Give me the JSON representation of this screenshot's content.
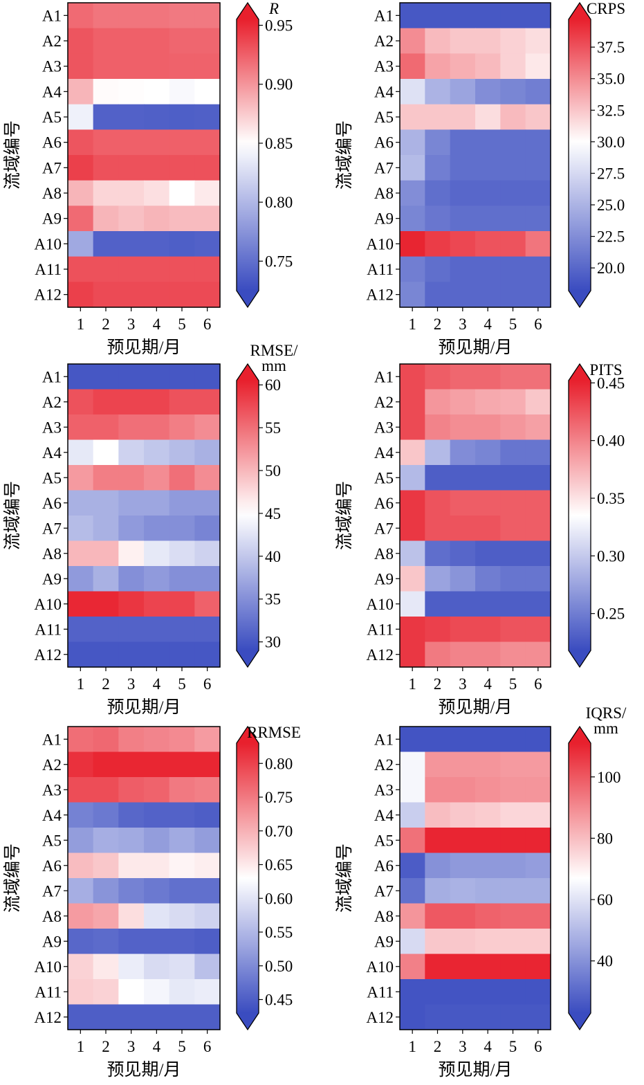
{
  "figure": {
    "colors": {
      "low": "#3a4cc0",
      "mid": "#ffffff",
      "high": "#e8202d",
      "frame": "#000000"
    }
  },
  "chart_data": [
    {
      "type": "heatmap",
      "metric": "R",
      "title": "R",
      "title_style": "italic",
      "xlabel": "预见期/月",
      "ylabel": "流域编号",
      "x": [
        "1",
        "2",
        "3",
        "4",
        "5",
        "6"
      ],
      "y": [
        "A1",
        "A2",
        "A3",
        "A4",
        "A5",
        "A6",
        "A7",
        "A8",
        "A9",
        "A10",
        "A11",
        "A12"
      ],
      "values": [
        [
          0.92,
          0.915,
          0.915,
          0.915,
          0.913,
          0.913
        ],
        [
          0.93,
          0.925,
          0.925,
          0.925,
          0.922,
          0.922
        ],
        [
          0.93,
          0.925,
          0.925,
          0.925,
          0.924,
          0.924
        ],
        [
          0.885,
          0.852,
          0.851,
          0.85,
          0.846,
          0.85
        ],
        [
          0.84,
          0.74,
          0.74,
          0.739,
          0.738,
          0.739
        ],
        [
          0.93,
          0.925,
          0.925,
          0.925,
          0.925,
          0.925
        ],
        [
          0.94,
          0.932,
          0.932,
          0.932,
          0.932,
          0.932
        ],
        [
          0.885,
          0.87,
          0.87,
          0.865,
          0.85,
          0.86
        ],
        [
          0.92,
          0.885,
          0.88,
          0.885,
          0.882,
          0.882
        ],
        [
          0.79,
          0.74,
          0.74,
          0.74,
          0.738,
          0.74
        ],
        [
          0.932,
          0.932,
          0.932,
          0.932,
          0.932,
          0.932
        ],
        [
          0.94,
          0.935,
          0.935,
          0.935,
          0.935,
          0.935
        ]
      ],
      "colorbar": {
        "min": 0.725,
        "max": 0.955,
        "vmid": 0.85,
        "ticks": [
          0.75,
          0.8,
          0.85,
          0.9,
          0.95
        ],
        "tick_labels": [
          "0.75",
          "0.80",
          "0.85",
          "0.90",
          "0.95"
        ],
        "extend": "both"
      }
    },
    {
      "type": "heatmap",
      "metric": "CRPS",
      "title": "CRPS",
      "xlabel": "预见期/月",
      "ylabel": "流域编号",
      "x": [
        "1",
        "2",
        "3",
        "4",
        "5",
        "6"
      ],
      "y": [
        "A1",
        "A2",
        "A3",
        "A4",
        "A5",
        "A6",
        "A7",
        "A8",
        "A9",
        "A10",
        "A11",
        "A12"
      ],
      "values": [
        [
          19.0,
          19.0,
          19.0,
          19.0,
          19.0,
          19.0
        ],
        [
          35.0,
          33.0,
          32.5,
          32.5,
          32.0,
          31.5
        ],
        [
          36.5,
          34.0,
          33.5,
          33.0,
          32.0,
          31.0
        ],
        [
          28.0,
          25.0,
          24.0,
          22.5,
          22.0,
          21.5
        ],
        [
          32.5,
          32.5,
          32.5,
          31.5,
          33.0,
          32.5
        ],
        [
          25.0,
          22.0,
          20.5,
          20.5,
          20.5,
          20.5
        ],
        [
          25.5,
          21.5,
          20.5,
          20.5,
          20.5,
          20.5
        ],
        [
          22.5,
          20.5,
          20.0,
          20.0,
          20.0,
          20.0
        ],
        [
          22.0,
          21.0,
          20.5,
          20.5,
          20.5,
          20.5
        ],
        [
          39.5,
          38.5,
          38.0,
          37.5,
          37.5,
          36.0
        ],
        [
          21.5,
          20.5,
          20.0,
          20.0,
          20.0,
          20.0
        ],
        [
          22.0,
          20.0,
          20.0,
          20.0,
          20.0,
          20.0
        ]
      ],
      "colorbar": {
        "min": 18.2,
        "max": 39.7,
        "vmid": 30.0,
        "ticks": [
          20.0,
          22.5,
          25.0,
          27.5,
          30.0,
          32.5,
          35.0,
          37.5
        ],
        "tick_labels": [
          "20.0",
          "22.5",
          "25.0",
          "27.5",
          "30.0",
          "32.5",
          "35.0",
          "37.5"
        ],
        "extend": "both"
      }
    },
    {
      "type": "heatmap",
      "metric": "RMSE",
      "title": "RMSE/\nmm",
      "xlabel": "预见期/月",
      "ylabel": "流域编号",
      "x": [
        "1",
        "2",
        "3",
        "4",
        "5",
        "6"
      ],
      "y": [
        "A1",
        "A2",
        "A3",
        "A4",
        "A5",
        "A6",
        "A7",
        "A8",
        "A9",
        "A10",
        "A11",
        "A12"
      ],
      "values": [
        [
          30,
          30,
          30,
          30,
          30,
          30
        ],
        [
          57,
          58,
          58,
          58,
          57,
          57
        ],
        [
          56,
          56,
          55,
          55,
          54,
          53
        ],
        [
          43,
          45,
          41,
          40,
          39,
          38
        ],
        [
          52,
          54,
          54,
          53,
          55,
          53
        ],
        [
          38,
          38,
          37,
          37,
          36,
          36
        ],
        [
          39,
          38,
          36,
          35,
          35,
          34
        ],
        [
          50,
          50,
          46,
          43,
          42,
          41
        ],
        [
          36,
          38,
          35,
          36,
          35,
          35
        ],
        [
          60,
          60,
          59,
          58,
          58,
          56
        ],
        [
          31,
          31,
          31,
          31,
          31,
          31
        ],
        [
          30,
          30,
          30,
          30,
          30,
          30
        ]
      ],
      "colorbar": {
        "min": 29.0,
        "max": 60.5,
        "vmid": 45.0,
        "ticks": [
          30,
          35,
          40,
          45,
          50,
          55,
          60
        ],
        "tick_labels": [
          "30",
          "35",
          "40",
          "45",
          "50",
          "55",
          "60"
        ],
        "extend": "both"
      }
    },
    {
      "type": "heatmap",
      "metric": "PITS",
      "title": "PITS",
      "xlabel": "预见期/月",
      "ylabel": "流域编号",
      "x": [
        "1",
        "2",
        "3",
        "4",
        "5",
        "6"
      ],
      "y": [
        "A1",
        "A2",
        "A3",
        "A4",
        "A5",
        "A6",
        "A7",
        "A8",
        "A9",
        "A10",
        "A11",
        "A12"
      ],
      "values": [
        [
          0.43,
          0.42,
          0.415,
          0.415,
          0.41,
          0.41
        ],
        [
          0.43,
          0.39,
          0.385,
          0.38,
          0.378,
          0.365
        ],
        [
          0.43,
          0.4,
          0.395,
          0.395,
          0.39,
          0.385
        ],
        [
          0.365,
          0.29,
          0.26,
          0.255,
          0.245,
          0.245
        ],
        [
          0.29,
          0.23,
          0.23,
          0.23,
          0.23,
          0.23
        ],
        [
          0.44,
          0.425,
          0.42,
          0.42,
          0.42,
          0.42
        ],
        [
          0.44,
          0.425,
          0.425,
          0.425,
          0.42,
          0.42
        ],
        [
          0.295,
          0.24,
          0.235,
          0.23,
          0.23,
          0.23
        ],
        [
          0.365,
          0.275,
          0.265,
          0.25,
          0.245,
          0.245
        ],
        [
          0.32,
          0.23,
          0.23,
          0.23,
          0.23,
          0.23
        ],
        [
          0.44,
          0.435,
          0.43,
          0.43,
          0.425,
          0.425
        ],
        [
          0.44,
          0.405,
          0.4,
          0.4,
          0.395,
          0.395
        ]
      ],
      "colorbar": {
        "min": 0.218,
        "max": 0.452,
        "vmid": 0.335,
        "ticks": [
          0.25,
          0.3,
          0.35,
          0.4,
          0.45
        ],
        "tick_labels": [
          "0.25",
          "0.30",
          "0.35",
          "0.40",
          "0.45"
        ],
        "extend": "both"
      }
    },
    {
      "type": "heatmap",
      "metric": "RRMSE",
      "title": "RRMSE",
      "xlabel": "预见期/月",
      "ylabel": "流域编号",
      "x": [
        "1",
        "2",
        "3",
        "4",
        "5",
        "6"
      ],
      "y": [
        "A1",
        "A2",
        "A3",
        "A4",
        "A5",
        "A6",
        "A7",
        "A8",
        "A9",
        "A10",
        "A11",
        "A12"
      ],
      "values": [
        [
          0.76,
          0.765,
          0.745,
          0.74,
          0.735,
          0.72
        ],
        [
          0.815,
          0.825,
          0.825,
          0.825,
          0.825,
          0.825
        ],
        [
          0.79,
          0.79,
          0.775,
          0.77,
          0.75,
          0.745
        ],
        [
          0.49,
          0.48,
          0.46,
          0.455,
          0.455,
          0.45
        ],
        [
          0.52,
          0.54,
          0.535,
          0.52,
          0.535,
          0.52
        ],
        [
          0.69,
          0.68,
          0.65,
          0.65,
          0.64,
          0.645
        ],
        [
          0.54,
          0.51,
          0.49,
          0.48,
          0.47,
          0.47
        ],
        [
          0.72,
          0.71,
          0.66,
          0.6,
          0.59,
          0.58
        ],
        [
          0.46,
          0.465,
          0.455,
          0.455,
          0.455,
          0.45
        ],
        [
          0.67,
          0.65,
          0.61,
          0.59,
          0.595,
          0.56
        ],
        [
          0.675,
          0.67,
          0.63,
          0.62,
          0.605,
          0.61
        ],
        [
          0.45,
          0.45,
          0.45,
          0.45,
          0.45,
          0.45
        ]
      ],
      "colorbar": {
        "min": 0.43,
        "max": 0.83,
        "vmid": 0.63,
        "ticks": [
          0.45,
          0.5,
          0.55,
          0.6,
          0.65,
          0.7,
          0.75,
          0.8
        ],
        "tick_labels": [
          "0.45",
          "0.50",
          "0.55",
          "0.60",
          "0.65",
          "0.70",
          "0.75",
          "0.80"
        ],
        "extend": "both"
      }
    },
    {
      "type": "heatmap",
      "metric": "IQRS",
      "title": "IQRS/\nmm",
      "xlabel": "预见期/月",
      "ylabel": "流域编号",
      "x": [
        "1",
        "2",
        "3",
        "4",
        "5",
        "6"
      ],
      "y": [
        "A1",
        "A2",
        "A3",
        "A4",
        "A5",
        "A6",
        "A7",
        "A8",
        "A9",
        "A10",
        "A11",
        "A12"
      ],
      "values": [
        [
          25,
          25,
          25,
          25,
          25,
          25
        ],
        [
          65,
          88,
          88,
          88,
          87,
          87
        ],
        [
          65,
          90,
          90,
          89,
          88,
          88
        ],
        [
          55,
          80,
          78,
          77,
          75,
          75
        ],
        [
          95,
          110,
          110,
          110,
          110,
          110
        ],
        [
          27,
          40,
          42,
          42,
          42,
          43
        ],
        [
          32,
          47,
          48,
          47,
          47,
          47
        ],
        [
          88,
          100,
          100,
          98,
          97,
          97
        ],
        [
          58,
          78,
          78,
          77,
          77,
          77
        ],
        [
          92,
          110,
          110,
          110,
          110,
          110
        ],
        [
          25,
          25,
          25,
          25,
          25,
          25
        ],
        [
          25,
          26,
          26,
          26,
          26,
          26
        ]
      ],
      "colorbar": {
        "min": 23.0,
        "max": 111.0,
        "vmid": 67.0,
        "ticks": [
          40,
          60,
          80,
          100
        ],
        "tick_labels": [
          "40",
          "60",
          "80",
          "100"
        ],
        "extend": "both"
      }
    }
  ]
}
